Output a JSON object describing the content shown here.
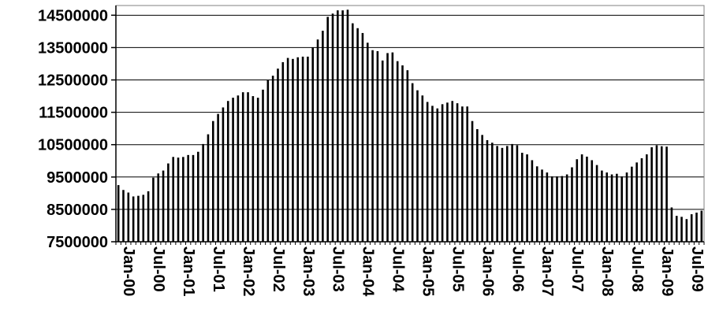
{
  "chart_data": {
    "type": "bar",
    "title": "",
    "xlabel": "",
    "ylabel": "",
    "ylim": [
      7500000,
      14800000
    ],
    "yticks": [
      7500000,
      8500000,
      9500000,
      10500000,
      11500000,
      12500000,
      13500000,
      14500000
    ],
    "ytick_labels": [
      "7500000",
      "8500000",
      "9500000",
      "10500000",
      "11500000",
      "12500000",
      "13500000",
      "14500000"
    ],
    "x_tick_labels": [
      "Jan-00",
      "Jul-00",
      "Jan-01",
      "Jul-01",
      "Jan-02",
      "Jul-02",
      "Jan-03",
      "Jul-03",
      "Jan-04",
      "Jul-04",
      "Jan-05",
      "Jul-05",
      "Jan-06",
      "Jul-06",
      "Jan-07",
      "Jul-07",
      "Jan-08",
      "Jul-08",
      "Jan-09",
      "Jul-09"
    ],
    "grid": "horizontal",
    "legend": "none",
    "bar_color": "#000000",
    "start_month": "Jan-00",
    "values": [
      9250000,
      9100000,
      9020000,
      8900000,
      8920000,
      8950000,
      9060000,
      9480000,
      9610000,
      9700000,
      9920000,
      10120000,
      10100000,
      10120000,
      10180000,
      10180000,
      10280000,
      10520000,
      10820000,
      11230000,
      11450000,
      11650000,
      11850000,
      11950000,
      12020000,
      12120000,
      12120000,
      12000000,
      11950000,
      12200000,
      12500000,
      12630000,
      12850000,
      13050000,
      13180000,
      13150000,
      13200000,
      13220000,
      13220000,
      13500000,
      13750000,
      14020000,
      14450000,
      14550000,
      14650000,
      14650000,
      14670000,
      14250000,
      14100000,
      13950000,
      13650000,
      13420000,
      13390000,
      13100000,
      13330000,
      13350000,
      13080000,
      12950000,
      12800000,
      12400000,
      12180000,
      12020000,
      11820000,
      11700000,
      11620000,
      11750000,
      11800000,
      11850000,
      11780000,
      11680000,
      11680000,
      11230000,
      10980000,
      10800000,
      10640000,
      10560000,
      10460000,
      10400000,
      10460000,
      10520000,
      10480000,
      10250000,
      10200000,
      10020000,
      9830000,
      9730000,
      9640000,
      9520000,
      9520000,
      9530000,
      9580000,
      9800000,
      10050000,
      10200000,
      10130000,
      10020000,
      9870000,
      9700000,
      9640000,
      9580000,
      9600000,
      9520000,
      9640000,
      9820000,
      9950000,
      10080000,
      10200000,
      10420000,
      10480000,
      10450000,
      10440000,
      8560000,
      8300000,
      8270000,
      8200000,
      8350000,
      8400000,
      8460000
    ]
  }
}
